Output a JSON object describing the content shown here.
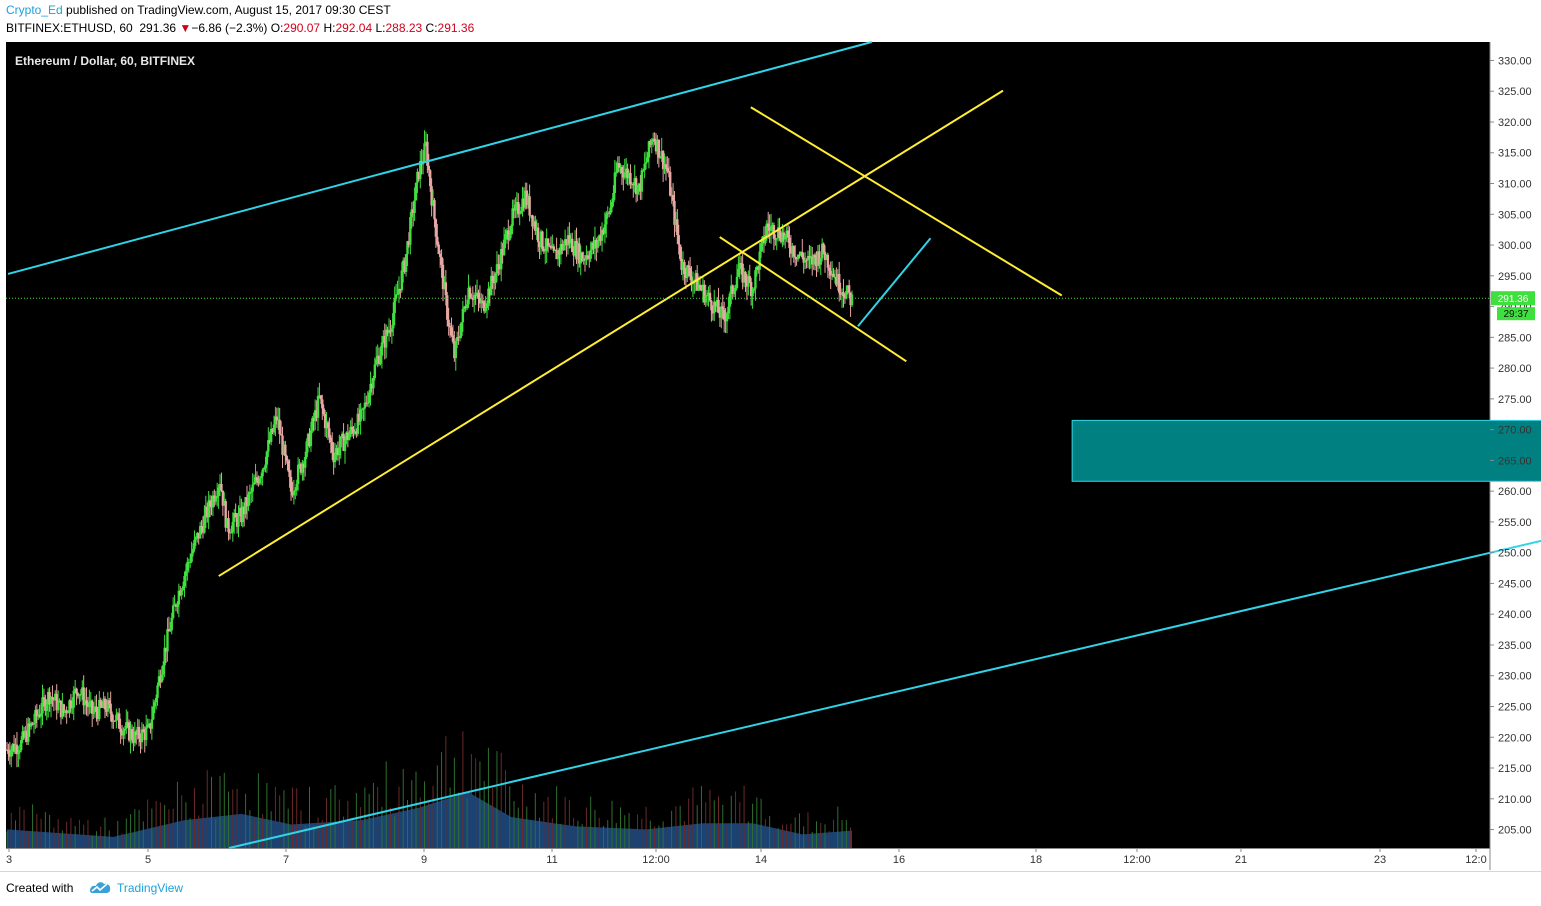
{
  "header": {
    "author": "Crypto_Ed",
    "published": "published on TradingView.com, August 15, 2017 09:30 CEST",
    "symbol": "BITFINEX:ETHUSD, 60",
    "last": "291.36",
    "change_arrow": "▼",
    "change": "−6.86 (−2.3%)",
    "open_label": "O:",
    "open": "290.07",
    "high_label": "H:",
    "high": "292.04",
    "low_label": "L:",
    "low": "288.23",
    "close_label": "C:",
    "close": "291.36"
  },
  "footer": {
    "created_with": "Created with",
    "brand": "TradingView"
  },
  "colors": {
    "background": "#000000",
    "up": "#3ee03e",
    "down": "#e8a7a3",
    "trend_cyan": "#31d3e8",
    "trend_yellow": "#ffee33",
    "zone_fill": "#008080",
    "volume": "#1e4f87",
    "axis_text": "#333333"
  },
  "chart_data": {
    "type": "candlestick",
    "title": "Ethereum / Dollar, 60, BITFINEX",
    "ylim": [
      202,
      333
    ],
    "y_ticks": [
      "330.00",
      "325.00",
      "320.00",
      "315.00",
      "310.00",
      "305.00",
      "300.00",
      "295.00",
      "290.00",
      "285.00",
      "280.00",
      "275.00",
      "270.00",
      "265.00",
      "260.00",
      "255.00",
      "250.00",
      "245.00",
      "240.00",
      "235.00",
      "230.00",
      "225.00",
      "220.00",
      "215.00",
      "210.00",
      "205.00"
    ],
    "x_ticks": [
      "3",
      "5",
      "7",
      "9",
      "11",
      "12:00",
      "14",
      "16",
      "18",
      "12:00",
      "21",
      "23",
      "12:0"
    ],
    "last_price": {
      "value": 291.36,
      "label": "291.36",
      "countdown": "29:37"
    },
    "price_path": [
      {
        "t": 0,
        "p": 218
      },
      {
        "t": 2,
        "p": 219
      },
      {
        "t": 4,
        "p": 223
      },
      {
        "t": 6,
        "p": 227
      },
      {
        "t": 8,
        "p": 224
      },
      {
        "t": 10,
        "p": 228
      },
      {
        "t": 12,
        "p": 224
      },
      {
        "t": 14,
        "p": 225
      },
      {
        "t": 16,
        "p": 222
      },
      {
        "t": 18,
        "p": 220
      },
      {
        "t": 20,
        "p": 221
      },
      {
        "t": 22,
        "p": 233
      },
      {
        "t": 24,
        "p": 243
      },
      {
        "t": 26,
        "p": 250
      },
      {
        "t": 28,
        "p": 256
      },
      {
        "t": 30,
        "p": 262
      },
      {
        "t": 31,
        "p": 254
      },
      {
        "t": 33,
        "p": 256
      },
      {
        "t": 36,
        "p": 264
      },
      {
        "t": 38,
        "p": 272
      },
      {
        "t": 40,
        "p": 260
      },
      {
        "t": 42,
        "p": 266
      },
      {
        "t": 44,
        "p": 275
      },
      {
        "t": 46,
        "p": 266
      },
      {
        "t": 48,
        "p": 269
      },
      {
        "t": 50,
        "p": 272
      },
      {
        "t": 52,
        "p": 281
      },
      {
        "t": 54,
        "p": 287
      },
      {
        "t": 56,
        "p": 297
      },
      {
        "t": 58,
        "p": 312
      },
      {
        "t": 59,
        "p": 316
      },
      {
        "t": 60,
        "p": 306
      },
      {
        "t": 62,
        "p": 289
      },
      {
        "t": 63,
        "p": 282
      },
      {
        "t": 65,
        "p": 293
      },
      {
        "t": 67,
        "p": 290
      },
      {
        "t": 69,
        "p": 296
      },
      {
        "t": 71,
        "p": 304
      },
      {
        "t": 73,
        "p": 308
      },
      {
        "t": 75,
        "p": 301
      },
      {
        "t": 77,
        "p": 298
      },
      {
        "t": 79,
        "p": 301
      },
      {
        "t": 81,
        "p": 298
      },
      {
        "t": 83,
        "p": 300
      },
      {
        "t": 85,
        "p": 306
      },
      {
        "t": 86,
        "p": 313
      },
      {
        "t": 88,
        "p": 311
      },
      {
        "t": 89,
        "p": 309
      },
      {
        "t": 91,
        "p": 318
      },
      {
        "t": 93,
        "p": 312
      },
      {
        "t": 95,
        "p": 297
      },
      {
        "t": 97,
        "p": 294
      },
      {
        "t": 99,
        "p": 291
      },
      {
        "t": 101,
        "p": 288
      },
      {
        "t": 103,
        "p": 296
      },
      {
        "t": 105,
        "p": 293
      },
      {
        "t": 107,
        "p": 303
      },
      {
        "t": 109,
        "p": 302
      },
      {
        "t": 111,
        "p": 299
      },
      {
        "t": 113,
        "p": 297
      },
      {
        "t": 115,
        "p": 299
      },
      {
        "t": 117,
        "p": 294
      },
      {
        "t": 119,
        "p": 291
      }
    ],
    "volume_profile": [
      {
        "t": 0,
        "v": 0.3
      },
      {
        "t": 15,
        "v": 0.18
      },
      {
        "t": 25,
        "v": 0.45
      },
      {
        "t": 33,
        "v": 0.55
      },
      {
        "t": 40,
        "v": 0.38
      },
      {
        "t": 50,
        "v": 0.45
      },
      {
        "t": 58,
        "v": 0.65
      },
      {
        "t": 65,
        "v": 0.9
      },
      {
        "t": 71,
        "v": 0.5
      },
      {
        "t": 80,
        "v": 0.35
      },
      {
        "t": 90,
        "v": 0.3
      },
      {
        "t": 98,
        "v": 0.4
      },
      {
        "t": 105,
        "v": 0.4
      },
      {
        "t": 112,
        "v": 0.22
      },
      {
        "t": 119,
        "v": 0.28
      }
    ],
    "drawings": [
      {
        "kind": "trend",
        "color": "cyan",
        "from": {
          "d": 0.0,
          "p": 295.3
        },
        "to": {
          "d": 12.5,
          "p": 333.0
        }
      },
      {
        "kind": "trend",
        "color": "cyan",
        "from": {
          "d": 3.2,
          "p": 202.0
        },
        "to": {
          "d": 24.65,
          "p": 258.4
        }
      },
      {
        "kind": "trend",
        "color": "yellow",
        "from": {
          "d": 3.05,
          "p": 246.2
        },
        "to": {
          "d": 14.4,
          "p": 325.1
        }
      },
      {
        "kind": "trend",
        "color": "yellow",
        "from": {
          "d": 10.75,
          "p": 322.4
        },
        "to": {
          "d": 15.25,
          "p": 291.8
        }
      },
      {
        "kind": "trend",
        "color": "yellow",
        "from": {
          "d": 10.3,
          "p": 301.3
        },
        "to": {
          "d": 13.0,
          "p": 281.1
        }
      },
      {
        "kind": "trend",
        "color": "cyan",
        "from": {
          "d": 12.3,
          "p": 286.8
        },
        "to": {
          "d": 13.35,
          "p": 301.1
        }
      },
      {
        "kind": "zone",
        "color": "teal",
        "from": {
          "d": 15.4,
          "p": 271.5
        },
        "to": {
          "d": 24.6,
          "p": 261.6
        }
      }
    ]
  }
}
